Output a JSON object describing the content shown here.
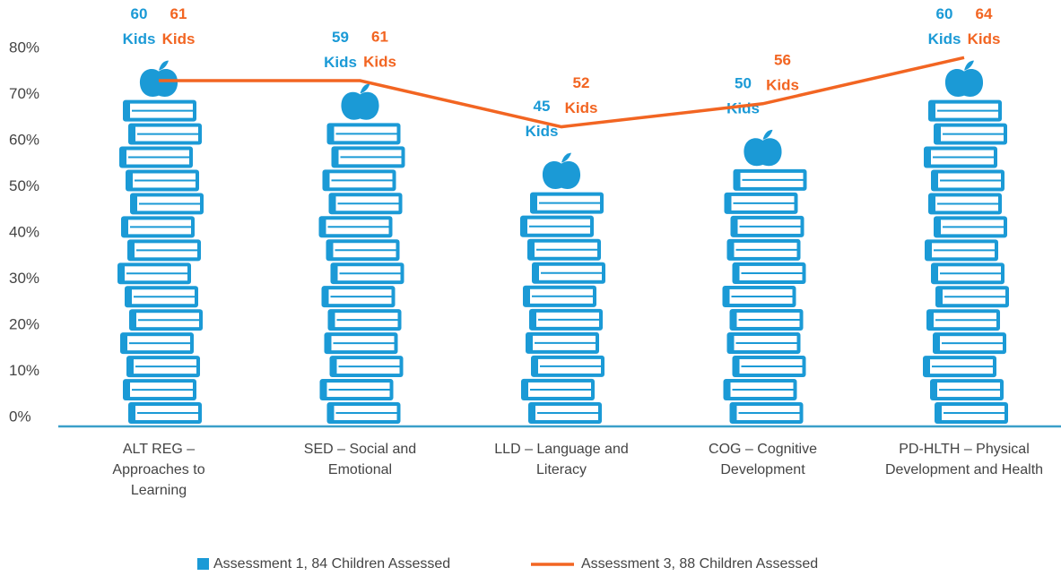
{
  "chart_data": {
    "type": "pictorial-bar-line",
    "categories": [
      "ALT REG – Approaches to Learning",
      "SED – Social and Emotional",
      "LLD – Language and Literacy",
      "COG – Cognitive Development",
      "PD-HLTH – Physical Development and Health"
    ],
    "series": [
      {
        "name": "Assessment 1, 84 Children Assessed",
        "type": "bar",
        "color": "#1b9ad6",
        "values": [
          69,
          64,
          49,
          54,
          69
        ],
        "counts": [
          60,
          59,
          45,
          50,
          60
        ],
        "count_unit": "Kids"
      },
      {
        "name": "Assessment 3, 88 Children Assessed",
        "type": "line",
        "color": "#f26522",
        "values": [
          73,
          73,
          63,
          68,
          78
        ],
        "counts": [
          61,
          61,
          52,
          56,
          64
        ],
        "count_unit": "Kids"
      }
    ],
    "ylim": [
      0,
      80
    ],
    "yticks": [
      {
        "value": 0,
        "label": "0%"
      },
      {
        "value": 10,
        "label": "10%"
      },
      {
        "value": 20,
        "label": "20%"
      },
      {
        "value": 30,
        "label": "30%"
      },
      {
        "value": 40,
        "label": "40%"
      },
      {
        "value": 50,
        "label": "50%"
      },
      {
        "value": 60,
        "label": "60%"
      },
      {
        "value": 70,
        "label": "70%"
      },
      {
        "value": 80,
        "label": "80%"
      }
    ],
    "grid": false,
    "legend": "bottom"
  }
}
